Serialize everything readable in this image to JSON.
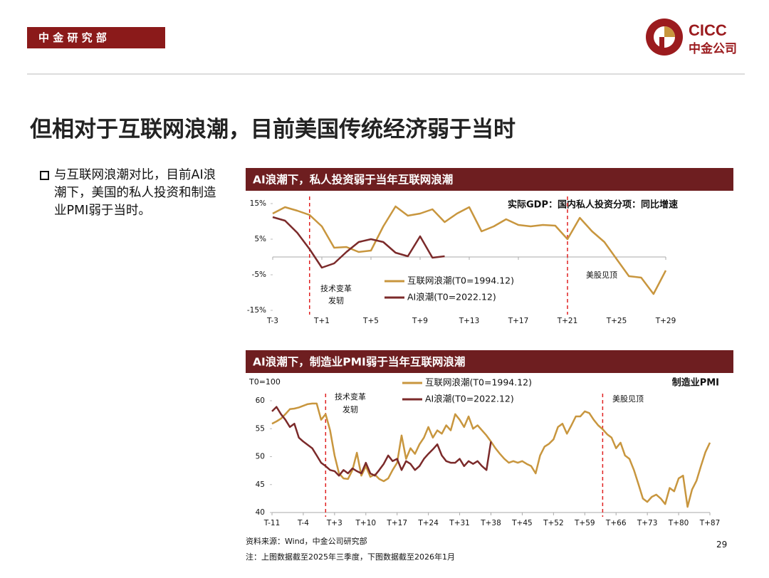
{
  "header": {
    "department": "中 金 研 究 部",
    "logo_en": "CICC",
    "logo_cn": "中金公司"
  },
  "title": "但相对于互联网浪潮，目前美国传统经济弱于当时",
  "bullet": "与互联网浪潮对比，目前AI浪潮下，美国的私人投资和制造业PMI弱于当时。",
  "footer": {
    "source": "资料来源：Wind，中金公司研究部",
    "note": "注：上图数据截至2025年三季度，下图数据截至2026年1月",
    "page": 29
  },
  "chart_data": [
    {
      "type": "line",
      "title": "AI浪潮下，私人投资弱于当年互联网浪潮",
      "subtitle": "实际GDP：国内私人投资分项：同比增速",
      "x": [
        -3,
        -2,
        -1,
        0,
        1,
        2,
        3,
        4,
        5,
        6,
        7,
        8,
        9,
        10,
        11,
        12,
        13,
        14,
        15,
        16,
        17,
        18,
        19,
        20,
        21,
        22,
        23,
        24,
        25,
        26,
        27,
        28,
        29
      ],
      "series": [
        {
          "name": "互联网浪潮(T0=1994.12)",
          "color": "#c8963e",
          "values": [
            12.2,
            14,
            13,
            11.8,
            8.6,
            2.6,
            2.8,
            1.4,
            1.8,
            8.6,
            14.2,
            11.6,
            12.2,
            13.4,
            9.8,
            12.2,
            14,
            7.2,
            8.6,
            10.6,
            9,
            8.6,
            9,
            8.8,
            5,
            11,
            7.2,
            4.2,
            -0.6,
            -5.4,
            -5.8,
            -10.4,
            -3.8
          ]
        },
        {
          "name": "AI浪潮(T0=2022.12)",
          "color": "#7b2a2a",
          "values": [
            11.2,
            10.2,
            6.8,
            2.2,
            -3,
            -1.8,
            1.4,
            4.2,
            5,
            4.2,
            1.2,
            0.2,
            5.8,
            -0.2,
            0.2,
            null,
            null,
            null,
            null,
            null,
            null,
            null,
            null,
            null,
            null,
            null,
            null,
            null,
            null,
            null,
            null,
            null,
            null
          ]
        }
      ],
      "xlim": [
        -3,
        29
      ],
      "xticks": [
        {
          "value": -3,
          "label": "T-3"
        },
        {
          "value": 1,
          "label": "T+1"
        },
        {
          "value": 5,
          "label": "T+5"
        },
        {
          "value": 9,
          "label": "T+9"
        },
        {
          "value": 13,
          "label": "T+13"
        },
        {
          "value": 17,
          "label": "T+17"
        },
        {
          "value": 21,
          "label": "T+21"
        },
        {
          "value": 25,
          "label": "T+25"
        },
        {
          "value": 29,
          "label": "T+29"
        }
      ],
      "ylim": [
        -15,
        15
      ],
      "yticks": [
        {
          "value": -15,
          "label": "-15%"
        },
        {
          "value": -5,
          "label": "-5%"
        },
        {
          "value": 5,
          "label": "5%"
        },
        {
          "value": 15,
          "label": "15%"
        }
      ],
      "events": [
        {
          "x": 0,
          "label_lines": [
            "技术变革",
            "发轫"
          ]
        },
        {
          "x": 21,
          "label_lines": [
            "美股见顶"
          ]
        }
      ]
    },
    {
      "type": "line",
      "title": "AI浪潮下，制造业PMI弱于当年互联网浪潮",
      "subtitle": "制造业PMI",
      "ylabel": "T0=100",
      "x": [
        -11,
        -10,
        -9,
        -8,
        -7,
        -6,
        -5,
        -4,
        -3,
        -2,
        -1,
        0,
        1,
        2,
        3,
        4,
        5,
        6,
        7,
        8,
        9,
        10,
        11,
        12,
        13,
        14,
        15,
        16,
        17,
        18,
        19,
        20,
        21,
        22,
        23,
        24,
        25,
        26,
        27,
        28,
        29,
        30,
        31,
        32,
        33,
        34,
        35,
        36,
        37,
        38,
        39,
        40,
        41,
        42,
        43,
        44,
        45,
        46,
        47,
        48,
        49,
        50,
        51,
        52,
        53,
        54,
        55,
        56,
        57,
        58,
        59,
        60,
        61,
        62,
        63,
        64,
        65,
        66,
        67,
        68,
        69,
        70,
        71,
        72,
        73,
        74,
        75,
        76,
        77,
        78,
        79,
        80,
        81,
        82,
        83,
        84,
        85,
        86,
        87
      ],
      "series": [
        {
          "name": "互联网浪潮(T0=1994.12)",
          "color": "#c8963e",
          "values": [
            55.9,
            56.3,
            56.8,
            57.6,
            58.5,
            58.6,
            58.8,
            59.1,
            59.4,
            59.5,
            59.5,
            56.6,
            57.6,
            54.7,
            50.2,
            47,
            46.1,
            46,
            47.6,
            50.7,
            46.6,
            48.3,
            46.4,
            46.8,
            46,
            45.6,
            46.1,
            47.6,
            48.9,
            53.8,
            49.6,
            51.5,
            50.5,
            52.2,
            53.4,
            55.3,
            53.4,
            54.7,
            54.1,
            55.6,
            54.7,
            57.6,
            56.6,
            55.3,
            57.2,
            55,
            55.6,
            54.7,
            53.8,
            52.7,
            51.5,
            50.5,
            49.6,
            48.9,
            49.2,
            48.9,
            49.2,
            48.7,
            48.3,
            47,
            50.2,
            51.8,
            52.3,
            53.1,
            55.3,
            55.9,
            54.1,
            55.6,
            57.2,
            57.2,
            58.1,
            57.8,
            56.6,
            55.6,
            54.9,
            54,
            53.4,
            51.5,
            52.5,
            50.2,
            49.6,
            47.6,
            45.1,
            42.5,
            41.9,
            42.8,
            43.2,
            42.5,
            41.5,
            44.4,
            43.8,
            46.1,
            46.6,
            41,
            44.1,
            45.7,
            48.3,
            50.8,
            52.5
          ]
        },
        {
          "name": "AI浪潮(T0=2022.12)",
          "color": "#7b2a2a",
          "values": [
            58.1,
            58.9,
            57.6,
            56.6,
            55.3,
            55.9,
            53.4,
            52.7,
            52.1,
            51.5,
            50.2,
            48.9,
            48.3,
            47.6,
            47.4,
            46.6,
            47.6,
            47,
            47.9,
            47.4,
            47,
            48.9,
            47,
            46.6,
            47.6,
            48.7,
            50.2,
            49.2,
            49.6,
            47.6,
            49.2,
            48.7,
            47.6,
            48.3,
            49.6,
            50.5,
            51.3,
            52.2,
            50.2,
            49.2,
            48.9,
            48.9,
            49.6,
            48.3,
            49.2,
            48.7,
            49.2,
            48.3,
            47.6,
            52.7,
            null,
            null,
            null,
            null,
            null,
            null,
            null,
            null,
            null,
            null,
            null,
            null,
            null,
            null,
            null,
            null,
            null,
            null,
            null,
            null,
            null,
            null,
            null,
            null,
            null,
            null,
            null,
            null,
            null,
            null,
            null,
            null,
            null,
            null,
            null,
            null,
            null,
            null,
            null,
            null,
            null,
            null,
            null,
            null,
            null,
            null,
            null,
            null,
            null
          ]
        }
      ],
      "xlim": [
        -11,
        87
      ],
      "xticks": [
        {
          "value": -11,
          "label": "T-11"
        },
        {
          "value": -4,
          "label": "T-4"
        },
        {
          "value": 3,
          "label": "T+3"
        },
        {
          "value": 10,
          "label": "T+10"
        },
        {
          "value": 17,
          "label": "T+17"
        },
        {
          "value": 24,
          "label": "T+24"
        },
        {
          "value": 31,
          "label": "T+31"
        },
        {
          "value": 38,
          "label": "T+38"
        },
        {
          "value": 45,
          "label": "T+45"
        },
        {
          "value": 52,
          "label": "T+52"
        },
        {
          "value": 59,
          "label": "T+59"
        },
        {
          "value": 66,
          "label": "T+66"
        },
        {
          "value": 73,
          "label": "T+73"
        },
        {
          "value": 80,
          "label": "T+80"
        },
        {
          "value": 87,
          "label": "T+87"
        }
      ],
      "ylim": [
        40,
        60
      ],
      "yticks": [
        40,
        45,
        50,
        55,
        60
      ],
      "events": [
        {
          "x": 1,
          "label_lines": [
            "技术变革",
            "发轫"
          ]
        },
        {
          "x": 63,
          "label_lines": [
            "美股见顶"
          ]
        }
      ]
    }
  ]
}
